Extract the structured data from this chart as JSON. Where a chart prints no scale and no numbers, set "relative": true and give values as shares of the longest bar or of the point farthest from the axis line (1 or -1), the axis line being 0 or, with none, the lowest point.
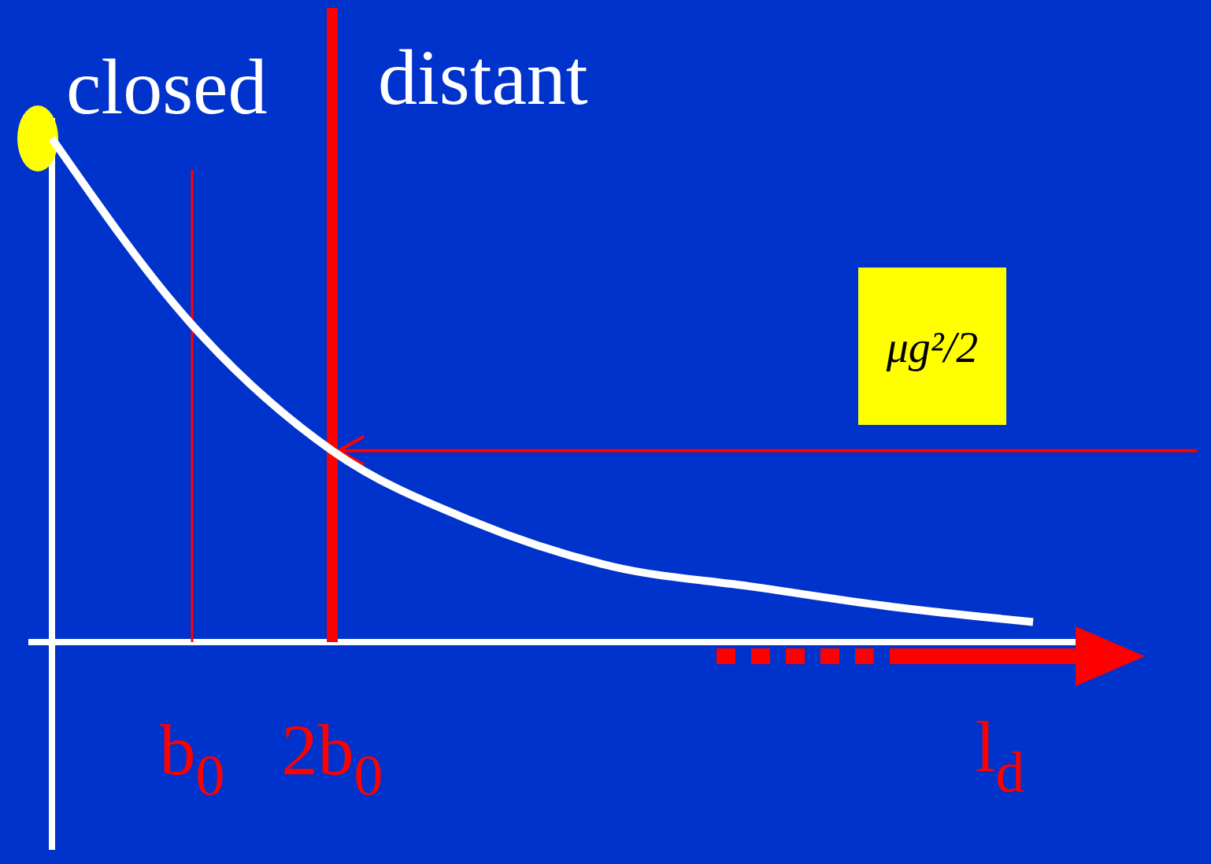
{
  "chart_data": {
    "type": "line",
    "relative": true,
    "categories": [
      null,
      "b$_{0}$",
      "2b$_{0}$",
      null,
      null,
      null,
      null,
      null
    ],
    "series": [
      {
        "color": "#ffffff",
        "values": [
          1,
          0.63,
          0.38,
          0.24,
          0.15,
          0.11,
          0.07,
          0.04
        ]
      }
    ],
    "xlabel": "l$_{d}$",
    "marker": "none",
    "line_style": "solid",
    "annotations": [
      "closed",
      "distant"
    ],
    "ref_lines": [
      {
        "axis": "x",
        "value": "b$_{0}$",
        "color": "#ff0000"
      },
      {
        "axis": "x",
        "value": "2b$_{0}$",
        "color": "#ff0000"
      },
      {
        "axis": "y",
        "value": 0.38,
        "label": "μg²/2",
        "color": "#ff0000"
      }
    ]
  }
}
